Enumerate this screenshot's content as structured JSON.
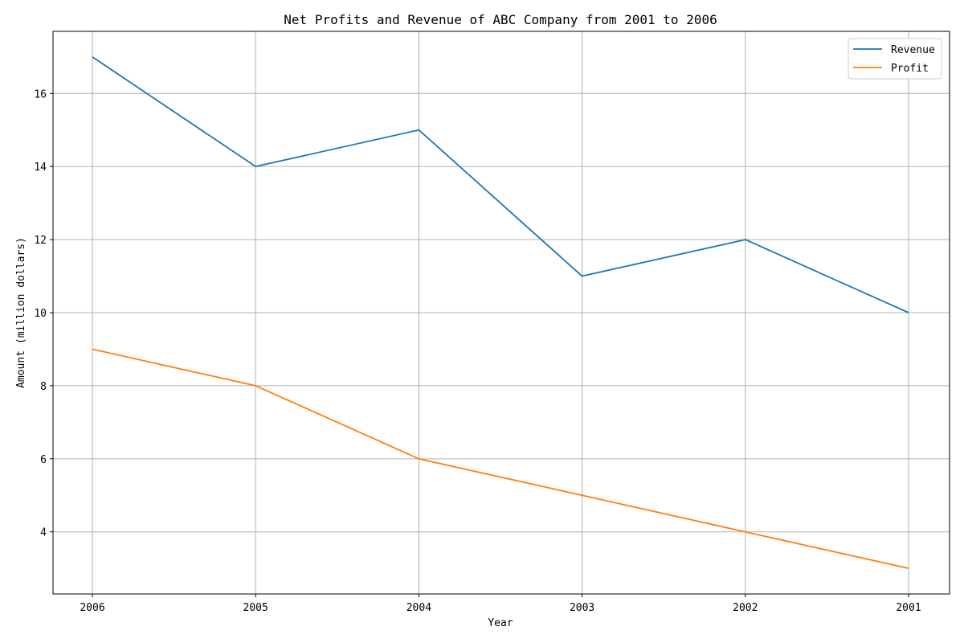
{
  "chart_data": {
    "type": "line",
    "title": "Net Profits and Revenue of ABC Company from 2001 to 2006",
    "xlabel": "Year",
    "ylabel": "Amount (million dollars)",
    "categories": [
      "2006",
      "2005",
      "2004",
      "2003",
      "2002",
      "2001"
    ],
    "series": [
      {
        "name": "Revenue",
        "color": "#1f77b4",
        "values": [
          17,
          14,
          15,
          11,
          12,
          10
        ]
      },
      {
        "name": "Profit",
        "color": "#ff7f0e",
        "values": [
          9,
          8,
          6,
          5,
          4,
          3
        ]
      }
    ],
    "yticks": [
      4,
      6,
      8,
      10,
      12,
      14,
      16
    ],
    "ylim": [
      2.3,
      17.7
    ],
    "grid": true,
    "legend_position": "top-right"
  }
}
